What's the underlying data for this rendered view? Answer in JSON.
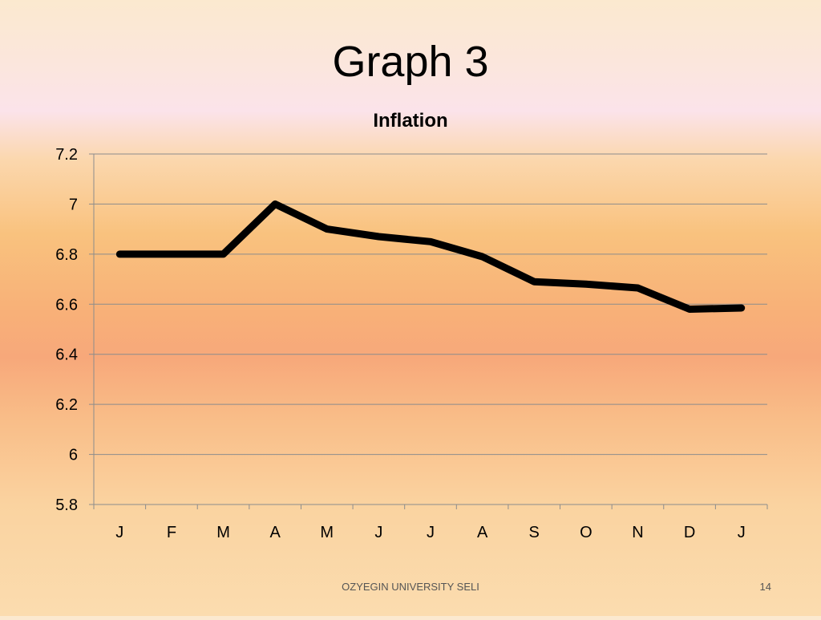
{
  "slide": {
    "title": "Graph 3",
    "footer": "OZYEGIN UNIVERSITY SELI",
    "page_number": "14"
  },
  "chart_data": {
    "type": "line",
    "title": "Inflation",
    "categories": [
      "J",
      "F",
      "M",
      "A",
      "M",
      "J",
      "J",
      "A",
      "S",
      "O",
      "N",
      "D",
      "J"
    ],
    "series": [
      {
        "values": [
          6.8,
          6.8,
          6.8,
          7.0,
          6.9,
          6.87,
          6.85,
          6.79,
          6.69,
          6.68,
          6.665,
          6.58,
          6.585
        ]
      }
    ],
    "yticks": [
      "5.8",
      "6",
      "6.2",
      "6.4",
      "6.6",
      "6.8",
      "7",
      "7.2"
    ],
    "ylim": [
      5.8,
      7.2
    ],
    "xlabel": "",
    "ylabel": "",
    "grid": "horizontal",
    "legend": "none",
    "line_color": "#000000"
  }
}
